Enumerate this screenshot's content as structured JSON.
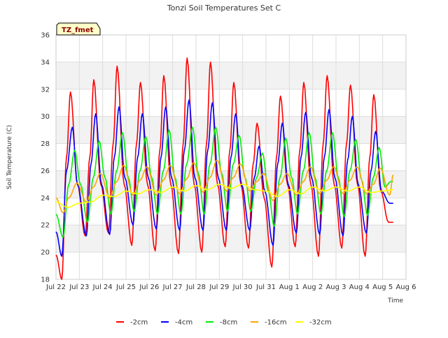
{
  "chart_data": {
    "type": "line",
    "title": "Tonzi Soil Temperatures Set C",
    "xlabel": "Time",
    "ylabel": "Soil Temperature (C)",
    "badge": "TZ_fmet",
    "ylim": [
      18,
      36
    ],
    "xlim": [
      0,
      15
    ],
    "y_ticks": [
      18,
      20,
      22,
      24,
      26,
      28,
      30,
      32,
      34,
      36
    ],
    "x_ticks": [
      {
        "x": 0,
        "label": "Jul 22"
      },
      {
        "x": 1,
        "label": "Jul 23"
      },
      {
        "x": 2,
        "label": "Jul 24"
      },
      {
        "x": 3,
        "label": "Jul 25"
      },
      {
        "x": 4,
        "label": "Jul 26"
      },
      {
        "x": 5,
        "label": "Jul 27"
      },
      {
        "x": 6,
        "label": "Jul 28"
      },
      {
        "x": 7,
        "label": "Jul 29"
      },
      {
        "x": 8,
        "label": "Jul 30"
      },
      {
        "x": 9,
        "label": "Jul 31"
      },
      {
        "x": 10,
        "label": "Aug 1"
      },
      {
        "x": 11,
        "label": "Aug 2"
      },
      {
        "x": 12,
        "label": "Aug 3"
      },
      {
        "x": 13,
        "label": "Aug 4"
      },
      {
        "x": 14,
        "label": "Aug 5"
      },
      {
        "x": 15,
        "label": "Aug 6"
      }
    ],
    "grid": true,
    "legend_position": "bottom",
    "series": [
      {
        "name": "-2cm",
        "color": "#ff0000",
        "x": [
          0.0,
          0.25,
          0.45,
          0.62,
          0.92,
          1.25,
          1.45,
          1.62,
          1.92,
          2.25,
          2.45,
          2.62,
          2.92,
          3.25,
          3.45,
          3.62,
          3.92,
          4.25,
          4.45,
          4.62,
          4.92,
          5.25,
          5.45,
          5.62,
          5.92,
          6.25,
          6.45,
          6.62,
          6.92,
          7.25,
          7.45,
          7.62,
          7.92,
          8.25,
          8.45,
          8.62,
          8.92,
          9.25,
          9.45,
          9.62,
          9.92,
          10.25,
          10.45,
          10.62,
          10.92,
          11.25,
          11.45,
          11.62,
          11.92,
          12.25,
          12.45,
          12.62,
          12.92,
          13.25,
          13.45,
          13.62,
          13.92,
          14.25,
          14.45
        ],
        "y": [
          19.8,
          18.0,
          27.0,
          31.8,
          25.0,
          21.2,
          27.0,
          32.7,
          25.0,
          21.4,
          28.0,
          33.7,
          25.0,
          20.5,
          28.0,
          32.5,
          25.0,
          20.1,
          27.5,
          33.0,
          25.0,
          19.9,
          28.0,
          34.3,
          25.0,
          20.0,
          28.0,
          34.0,
          25.0,
          20.4,
          27.5,
          32.5,
          25.0,
          20.3,
          26.5,
          29.5,
          24.0,
          18.9,
          27.0,
          31.5,
          25.0,
          20.4,
          27.5,
          32.5,
          25.0,
          19.7,
          28.0,
          33.0,
          25.0,
          20.3,
          28.0,
          32.3,
          25.0,
          19.7,
          27.0,
          31.6,
          24.5,
          22.2,
          22.2
        ]
      },
      {
        "name": "-4cm",
        "color": "#0000ff",
        "x": [
          0.0,
          0.25,
          0.45,
          0.7,
          0.92,
          1.3,
          1.5,
          1.7,
          1.95,
          2.3,
          2.5,
          2.7,
          2.95,
          3.3,
          3.5,
          3.7,
          3.95,
          4.3,
          4.5,
          4.7,
          4.95,
          5.3,
          5.5,
          5.7,
          5.95,
          6.3,
          6.5,
          6.7,
          6.95,
          7.3,
          7.5,
          7.7,
          7.95,
          8.3,
          8.5,
          8.7,
          8.95,
          9.3,
          9.5,
          9.7,
          9.95,
          10.3,
          10.5,
          10.7,
          10.95,
          11.3,
          11.5,
          11.7,
          11.95,
          12.3,
          12.5,
          12.7,
          12.95,
          13.3,
          13.5,
          13.7,
          13.95,
          14.3,
          14.45
        ],
        "y": [
          21.5,
          19.7,
          26.0,
          29.2,
          25.0,
          21.2,
          26.5,
          30.2,
          25.0,
          21.3,
          27.0,
          30.7,
          25.5,
          22.0,
          27.0,
          30.2,
          25.5,
          21.7,
          27.0,
          30.7,
          25.5,
          21.6,
          27.5,
          31.2,
          25.5,
          21.6,
          27.5,
          31.0,
          25.5,
          21.6,
          27.0,
          30.2,
          25.0,
          21.6,
          25.5,
          27.8,
          24.5,
          20.5,
          26.5,
          29.5,
          25.0,
          21.4,
          27.0,
          30.3,
          25.5,
          21.3,
          27.0,
          30.5,
          25.5,
          21.2,
          26.8,
          30.0,
          25.0,
          21.4,
          26.0,
          28.9,
          24.5,
          23.6,
          23.6
        ]
      },
      {
        "name": "-8cm",
        "color": "#00ee00",
        "x": [
          0.0,
          0.3,
          0.55,
          0.8,
          1.05,
          1.35,
          1.6,
          1.85,
          2.1,
          2.35,
          2.6,
          2.85,
          3.1,
          3.35,
          3.6,
          3.85,
          4.1,
          4.35,
          4.6,
          4.85,
          5.1,
          5.35,
          5.6,
          5.85,
          6.1,
          6.35,
          6.6,
          6.85,
          7.1,
          7.35,
          7.6,
          7.85,
          8.1,
          8.35,
          8.6,
          8.85,
          9.1,
          9.35,
          9.6,
          9.85,
          10.1,
          10.35,
          10.6,
          10.85,
          11.1,
          11.35,
          11.6,
          11.85,
          12.1,
          12.35,
          12.6,
          12.85,
          13.1,
          13.35,
          13.6,
          13.85,
          14.1,
          14.35,
          14.45
        ],
        "y": [
          22.8,
          21.1,
          25.0,
          27.5,
          25.0,
          22.2,
          25.5,
          28.2,
          25.5,
          22.8,
          26.0,
          28.8,
          25.5,
          23.0,
          26.0,
          28.5,
          25.5,
          22.8,
          26.0,
          29.0,
          25.5,
          22.8,
          26.5,
          29.2,
          25.8,
          22.8,
          26.5,
          29.2,
          25.8,
          23.0,
          26.5,
          28.6,
          25.5,
          23.0,
          25.5,
          27.3,
          24.5,
          21.9,
          25.5,
          28.4,
          25.5,
          22.8,
          26.0,
          28.8,
          25.5,
          22.8,
          26.0,
          28.8,
          25.5,
          22.6,
          26.0,
          28.3,
          25.3,
          22.7,
          25.5,
          27.7,
          24.8,
          25.2,
          25.2
        ]
      },
      {
        "name": "-16cm",
        "color": "#ffa500",
        "x": [
          0.0,
          0.3,
          0.55,
          0.9,
          1.3,
          1.6,
          1.9,
          2.3,
          2.6,
          2.9,
          3.3,
          3.6,
          3.9,
          4.3,
          4.6,
          4.9,
          5.3,
          5.6,
          5.9,
          6.3,
          6.6,
          6.9,
          7.3,
          7.6,
          7.9,
          8.3,
          8.6,
          8.9,
          9.3,
          9.6,
          9.9,
          10.3,
          10.6,
          10.9,
          11.3,
          11.6,
          11.9,
          12.3,
          12.6,
          12.9,
          13.3,
          13.6,
          13.9,
          14.3,
          14.45
        ],
        "y": [
          24.0,
          22.9,
          24.0,
          25.1,
          23.7,
          24.8,
          25.8,
          24.0,
          25.2,
          26.4,
          24.2,
          25.3,
          26.3,
          24.2,
          25.3,
          26.4,
          24.3,
          25.4,
          26.6,
          24.4,
          25.5,
          26.8,
          24.5,
          25.5,
          26.5,
          24.5,
          25.2,
          25.8,
          23.8,
          25.0,
          25.8,
          24.2,
          25.2,
          26.3,
          24.3,
          25.3,
          26.3,
          24.3,
          25.3,
          26.3,
          24.3,
          25.0,
          26.2,
          24.2,
          25.7
        ]
      },
      {
        "name": "-32cm",
        "color": "#ffff00",
        "x": [
          0.0,
          0.5,
          1.0,
          1.5,
          2.0,
          2.5,
          3.0,
          3.5,
          4.0,
          4.5,
          5.0,
          5.5,
          6.0,
          6.5,
          7.0,
          7.5,
          8.0,
          8.5,
          9.0,
          9.5,
          10.0,
          10.5,
          11.0,
          11.5,
          12.0,
          12.5,
          13.0,
          13.5,
          14.0,
          14.45
        ],
        "y": [
          23.7,
          23.3,
          23.6,
          23.7,
          24.2,
          24.1,
          24.5,
          24.3,
          24.6,
          24.4,
          24.8,
          24.5,
          24.9,
          24.6,
          25.0,
          24.7,
          25.0,
          24.6,
          24.5,
          24.1,
          24.6,
          24.3,
          24.8,
          24.5,
          24.8,
          24.5,
          24.8,
          24.4,
          24.5,
          24.6
        ]
      }
    ]
  }
}
